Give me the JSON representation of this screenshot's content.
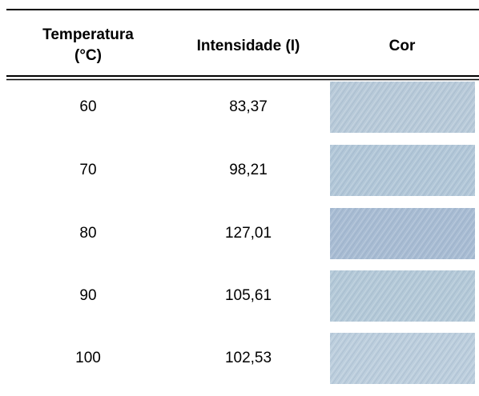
{
  "table": {
    "headers": [
      [
        "Temperatura",
        "(°C)"
      ],
      "Intensidade (I)",
      "Cor"
    ],
    "rows": [
      [
        "60",
        "83,37"
      ],
      [
        "70",
        "98,21"
      ],
      [
        "80",
        "127,01"
      ],
      [
        "90",
        "105,61"
      ],
      [
        "100",
        "102,53"
      ]
    ]
  }
}
